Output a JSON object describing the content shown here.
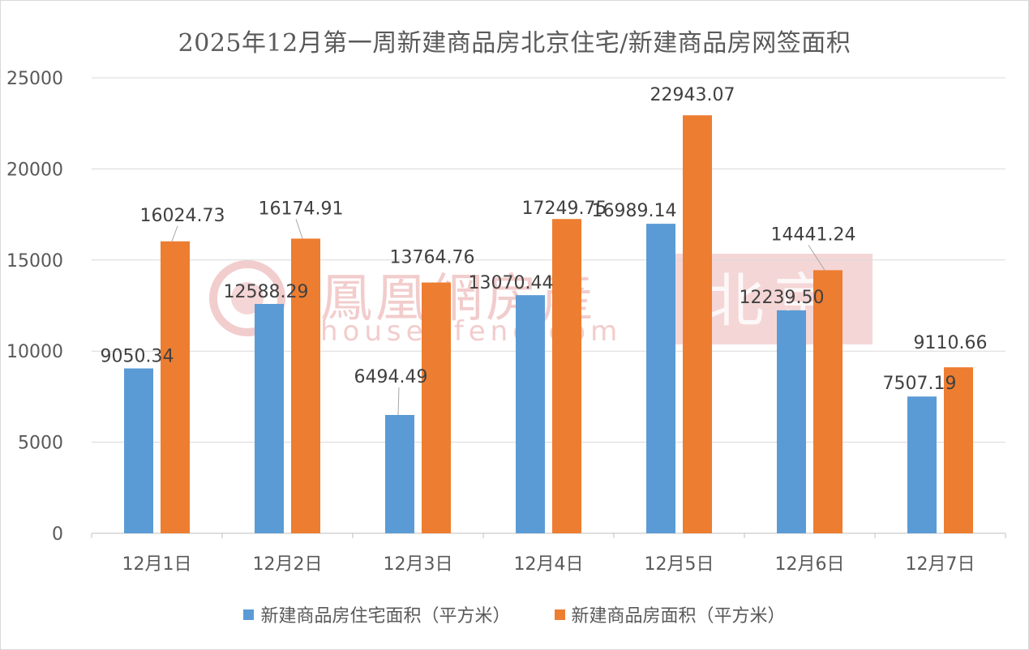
{
  "colors": {
    "series_0": "#5B9BD5",
    "series_1": "#ED7D31",
    "grid": "#d9d9d9",
    "text": "#595959",
    "watermark": "#e8a4a4"
  },
  "watermark": {
    "brand": "鳳凰網房產",
    "city": "北京",
    "url": "house.ifeng.com"
  },
  "chart_data": {
    "type": "bar",
    "title": "2025年12月第一周新建商品房北京住宅/新建商品房网签面积",
    "categories": [
      "12月1日",
      "12月2日",
      "12月3日",
      "12月4日",
      "12月5日",
      "12月6日",
      "12月7日"
    ],
    "series": [
      {
        "name": "新建商品房住宅面积（平方米）",
        "values": [
          9050.34,
          12588.29,
          6494.49,
          13070.44,
          16989.14,
          12239.5,
          7507.19
        ],
        "labels": [
          "9050.34",
          "12588.29",
          "6494.49",
          "13070.44",
          "16989.14",
          "12239.50",
          "7507.19"
        ]
      },
      {
        "name": "新建商品房面积（平方米）",
        "values": [
          16024.73,
          16174.91,
          13764.76,
          17249.75,
          22943.07,
          14441.24,
          9110.66
        ],
        "labels": [
          "16024.73",
          "16174.91",
          "13764.76",
          "17249.75",
          "22943.07",
          "14441.24",
          "9110.66"
        ]
      }
    ],
    "yticks": [
      "0",
      "5000",
      "10000",
      "15000",
      "20000",
      "25000"
    ],
    "ylim": [
      0,
      25000
    ],
    "grid": true,
    "legend_position": "bottom",
    "xlabel": "",
    "ylabel": ""
  }
}
